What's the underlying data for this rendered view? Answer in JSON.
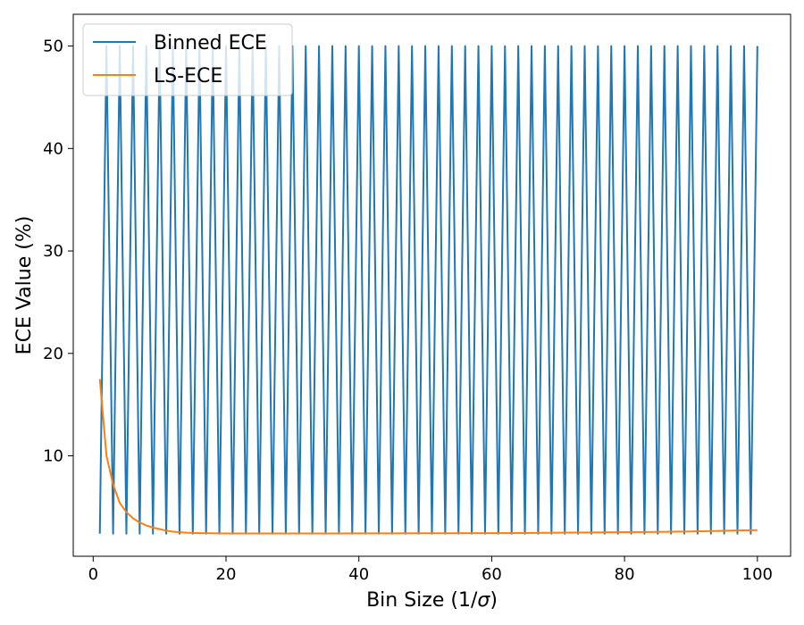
{
  "chart_data": {
    "type": "line",
    "title": "",
    "xlabel_text": "Bin Size (1/",
    "xlabel_symbol": "σ",
    "xlabel_close": ")",
    "ylabel": "ECE Value (%)",
    "xlim": [
      -3,
      105
    ],
    "ylim": [
      0.2,
      53.1
    ],
    "xticks": [
      0,
      20,
      40,
      60,
      80,
      100
    ],
    "yticks": [
      10,
      20,
      30,
      40,
      50
    ],
    "legend_position": "top-left",
    "grid": false,
    "series": [
      {
        "name": "Binned ECE",
        "color": "#1f77b4",
        "x": [
          1,
          2,
          3,
          4,
          5,
          6,
          7,
          8,
          9,
          10,
          11,
          12,
          13,
          14,
          15,
          16,
          17,
          18,
          19,
          20,
          21,
          22,
          23,
          24,
          25,
          26,
          27,
          28,
          29,
          30,
          31,
          32,
          33,
          34,
          35,
          36,
          37,
          38,
          39,
          40,
          41,
          42,
          43,
          44,
          45,
          46,
          47,
          48,
          49,
          50,
          51,
          52,
          53,
          54,
          55,
          56,
          57,
          58,
          59,
          60,
          61,
          62,
          63,
          64,
          65,
          66,
          67,
          68,
          69,
          70,
          71,
          72,
          73,
          74,
          75,
          76,
          77,
          78,
          79,
          80,
          81,
          82,
          83,
          84,
          85,
          86,
          87,
          88,
          89,
          90,
          91,
          92,
          93,
          94,
          95,
          96,
          97,
          98,
          99,
          100
        ],
        "y": [
          2.4,
          50,
          2.4,
          50,
          2.4,
          50,
          2.4,
          50,
          2.4,
          50,
          2.4,
          50,
          2.4,
          50,
          2.4,
          50,
          2.4,
          50,
          2.4,
          50,
          2.4,
          50,
          2.4,
          50,
          2.4,
          50,
          2.4,
          50,
          2.4,
          50,
          2.4,
          50,
          2.4,
          50,
          2.4,
          50,
          2.4,
          50,
          2.4,
          50,
          2.4,
          50,
          2.4,
          50,
          2.4,
          50,
          2.4,
          50,
          2.4,
          50,
          2.4,
          50,
          2.4,
          50,
          2.4,
          50,
          2.4,
          50,
          2.4,
          50,
          2.4,
          50,
          2.4,
          50,
          2.4,
          50,
          2.4,
          50,
          2.4,
          50,
          2.4,
          50,
          2.4,
          50,
          2.4,
          50,
          2.4,
          50,
          2.4,
          50,
          2.4,
          50,
          2.4,
          50,
          2.4,
          50,
          2.4,
          50,
          2.4,
          50,
          2.4,
          50,
          2.4,
          50,
          2.4,
          50,
          2.4,
          50,
          2.4,
          50
        ]
      },
      {
        "name": "LS-ECE",
        "color": "#ff7f0e",
        "x": [
          1,
          2,
          3,
          4,
          5,
          6,
          7,
          8,
          9,
          10,
          11,
          12,
          13,
          14,
          15,
          16,
          17,
          18,
          19,
          20,
          25,
          30,
          35,
          40,
          45,
          50,
          55,
          60,
          65,
          70,
          75,
          80,
          85,
          90,
          95,
          96,
          97,
          98,
          99,
          100
        ],
        "y": [
          17.5,
          10.0,
          7.2,
          5.4,
          4.5,
          3.9,
          3.5,
          3.2,
          3.0,
          2.85,
          2.7,
          2.6,
          2.55,
          2.5,
          2.48,
          2.46,
          2.45,
          2.44,
          2.43,
          2.42,
          2.42,
          2.42,
          2.42,
          2.43,
          2.43,
          2.44,
          2.45,
          2.46,
          2.47,
          2.5,
          2.52,
          2.55,
          2.58,
          2.62,
          2.68,
          2.7,
          2.72,
          2.73,
          2.74,
          2.75
        ]
      }
    ]
  }
}
